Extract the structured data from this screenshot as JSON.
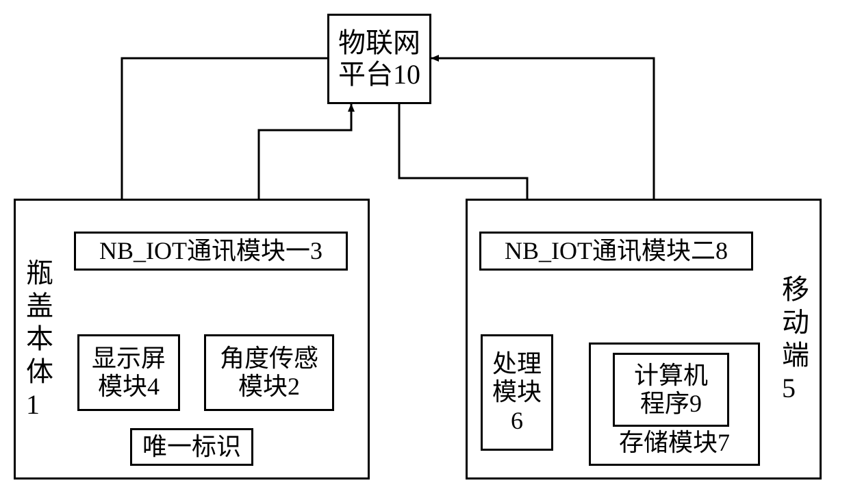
{
  "diagram": {
    "type": "flowchart",
    "background_color": "#ffffff",
    "stroke_color": "#000000",
    "stroke_width": 3,
    "font_family": "SimSun",
    "label_fontsize": 36,
    "nodes": {
      "platform": {
        "text": "物联网\n平台10"
      },
      "cap_body": {
        "text": "瓶盖本体1",
        "vertical": true
      },
      "mobile": {
        "text": "移动端5",
        "vertical": true
      },
      "nbiot1": {
        "text": "NB_IOT通讯模块一3"
      },
      "nbiot2": {
        "text": "NB_IOT通讯模块二8"
      },
      "display": {
        "text": "显示屏\n模块4"
      },
      "angle": {
        "text": "角度传感\n模块2"
      },
      "uid": {
        "text": "唯一标识"
      },
      "proc": {
        "text": "处理\n模块\n6"
      },
      "program": {
        "text": "计算机\n程序9"
      },
      "storage": {
        "text": "存储模块7"
      }
    }
  }
}
